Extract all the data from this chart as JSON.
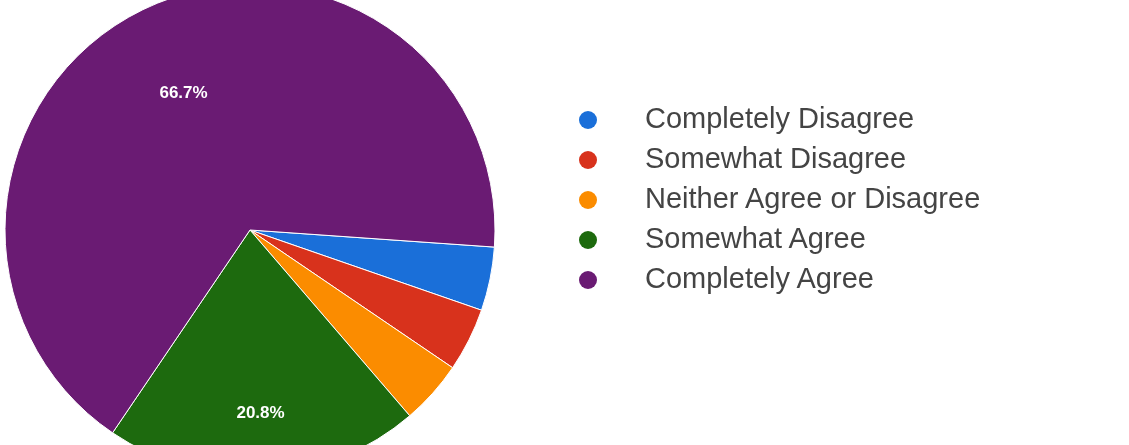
{
  "chart_data": {
    "type": "pie",
    "categories": [
      "Completely Disagree",
      "Somewhat Disagree",
      "Neither Agree or Disagree",
      "Somewhat Agree",
      "Completely Agree"
    ],
    "values": [
      4.2,
      4.2,
      4.2,
      20.8,
      66.7
    ],
    "colors": [
      "#1a6fd9",
      "#d8321c",
      "#fb8c00",
      "#1d6a0e",
      "#6a1b73"
    ],
    "value_labels": [
      null,
      null,
      null,
      "20.8%",
      "66.7%"
    ],
    "legend": "right"
  }
}
